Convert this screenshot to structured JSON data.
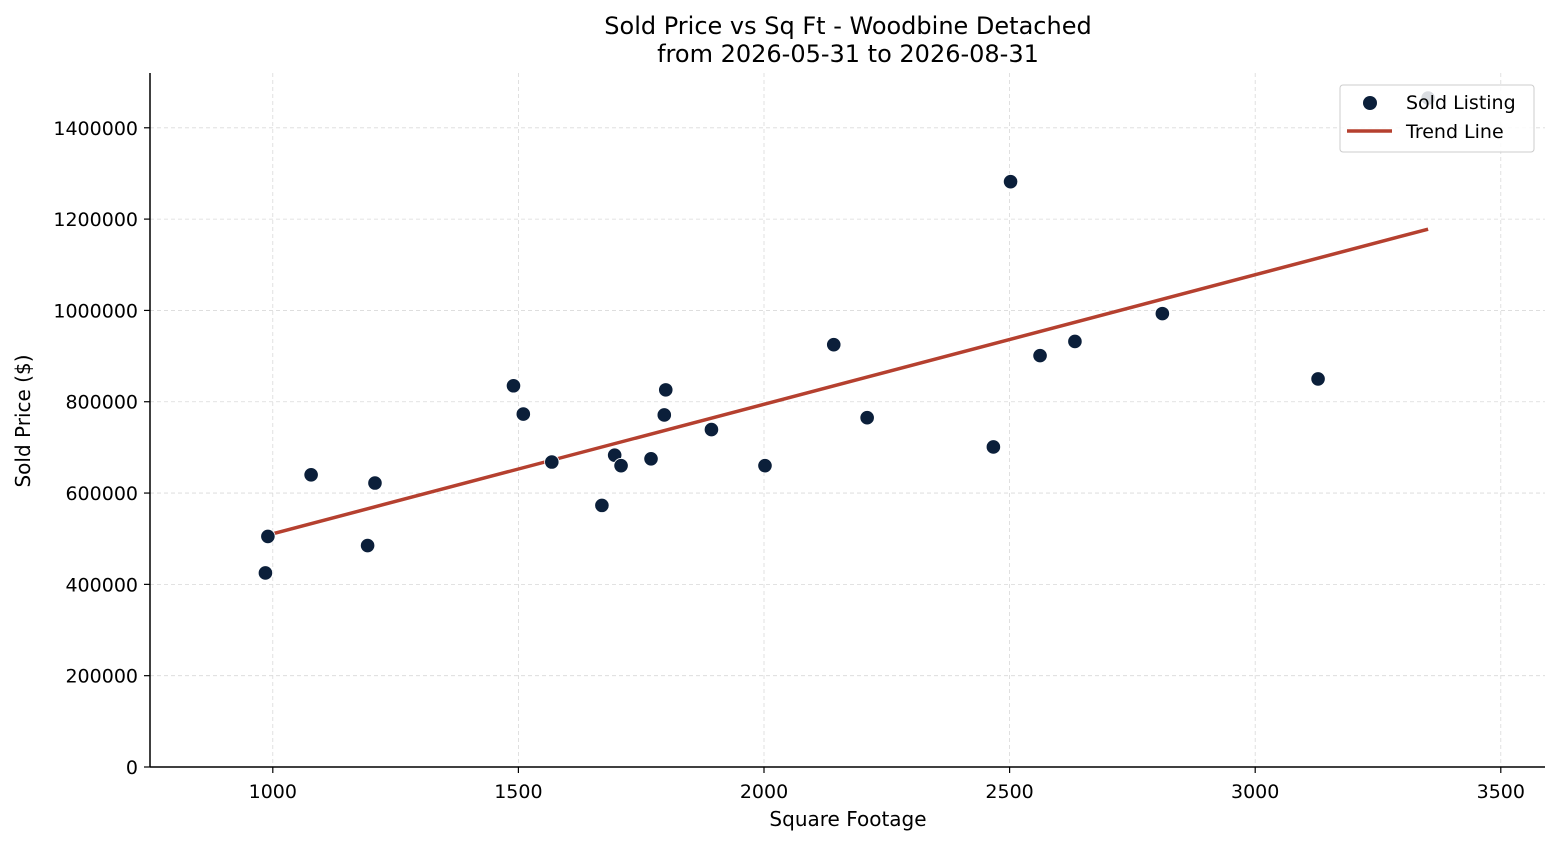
{
  "chart_data": {
    "type": "scatter",
    "title": "Sold Price vs Sq Ft - Woodbine Detached",
    "subtitle": "from 2026-05-31 to 2026-08-31",
    "xlabel": "Square Footage",
    "ylabel": "Sold Price ($)",
    "xlim": [
      750,
      3590
    ],
    "ylim": [
      0,
      1520000
    ],
    "xticks": [
      1000,
      1500,
      2000,
      2500,
      3000,
      3500
    ],
    "yticks": [
      0,
      200000,
      400000,
      600000,
      800000,
      1000000,
      1200000,
      1400000
    ],
    "grid": true,
    "legend_position": "top-right",
    "series": [
      {
        "name": "Sold Listing",
        "kind": "scatter",
        "color": "#0b1f3a",
        "points": [
          {
            "x": 985,
            "y": 425000
          },
          {
            "x": 990,
            "y": 505000
          },
          {
            "x": 1078,
            "y": 640000
          },
          {
            "x": 1193,
            "y": 485000
          },
          {
            "x": 1208,
            "y": 622000
          },
          {
            "x": 1490,
            "y": 835000
          },
          {
            "x": 1510,
            "y": 773000
          },
          {
            "x": 1568,
            "y": 668000
          },
          {
            "x": 1670,
            "y": 573000
          },
          {
            "x": 1696,
            "y": 683000
          },
          {
            "x": 1709,
            "y": 660000
          },
          {
            "x": 1770,
            "y": 675000
          },
          {
            "x": 1797,
            "y": 771000
          },
          {
            "x": 1800,
            "y": 826000
          },
          {
            "x": 1893,
            "y": 739000
          },
          {
            "x": 2002,
            "y": 660000
          },
          {
            "x": 2142,
            "y": 925000
          },
          {
            "x": 2210,
            "y": 765000
          },
          {
            "x": 2467,
            "y": 701000
          },
          {
            "x": 2502,
            "y": 1282000
          },
          {
            "x": 2562,
            "y": 901000
          },
          {
            "x": 2633,
            "y": 932000
          },
          {
            "x": 2811,
            "y": 993000
          },
          {
            "x": 3128,
            "y": 850000
          },
          {
            "x": 3352,
            "y": 1465000
          }
        ]
      },
      {
        "name": "Trend Line",
        "kind": "line",
        "color": "#b5402f",
        "x": [
          990,
          3352
        ],
        "y": [
          508000,
          1178000
        ]
      }
    ]
  }
}
